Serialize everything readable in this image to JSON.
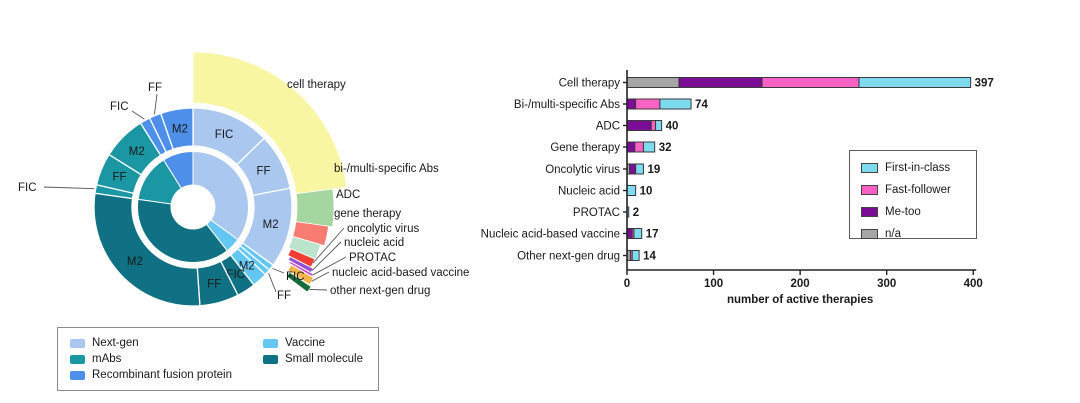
{
  "chart_data": [
    {
      "type": "pie",
      "subtype": "sunburst-donut",
      "title": "",
      "rings": [
        "modality (inner)",
        "innovation level (middle)",
        "next-gen drug class (outer)"
      ],
      "modalities": [
        {
          "name": "Next-gen",
          "color": "#A9C7EF",
          "deg": [
            0,
            126
          ],
          "levels": [
            {
              "label": "FIC",
              "deg": [
                0,
                46
              ]
            },
            {
              "label": "FF",
              "deg": [
                46,
                79
              ]
            },
            {
              "label": "M2",
              "deg": [
                79,
                126
              ]
            }
          ]
        },
        {
          "name": "Vaccine",
          "color": "#64C7F3",
          "deg": [
            126,
            142
          ],
          "levels": [
            {
              "label": "FIC",
              "deg": [
                126,
                129.5
              ],
              "callout": true
            },
            {
              "label": "FF",
              "deg": [
                129.5,
                133
              ],
              "callout": true
            },
            {
              "label": "M2",
              "deg": [
                133,
                142
              ]
            }
          ]
        },
        {
          "name": "Small molecule",
          "color": "#0F7183",
          "deg": [
            142,
            278
          ],
          "levels": [
            {
              "label": "FIC",
              "deg": [
                142,
                153
              ]
            },
            {
              "label": "FF",
              "deg": [
                153,
                176
              ]
            },
            {
              "label": "M2",
              "deg": [
                176,
                278
              ]
            }
          ]
        },
        {
          "name": "mAbs",
          "color": "#1B96A3",
          "deg": [
            278,
            328
          ],
          "levels": [
            {
              "label": "FIC",
              "deg": [
                278,
                283
              ],
              "callout": true
            },
            {
              "label": "FF",
              "deg": [
                283,
                302
              ]
            },
            {
              "label": "M2",
              "deg": [
                302,
                328
              ]
            }
          ]
        },
        {
          "name": "Recombinant fusion protein",
          "color": "#4E90E9",
          "deg": [
            328,
            360
          ],
          "levels": [
            {
              "label": "FIC",
              "deg": [
                328,
                334
              ],
              "callout": true
            },
            {
              "label": "FF",
              "deg": [
                334,
                341
              ],
              "callout": true
            },
            {
              "label": "M2",
              "deg": [
                341,
                360
              ]
            }
          ]
        }
      ],
      "outer_classes": [
        {
          "label": "cell therapy",
          "color": "#F8F5A3",
          "value": 397
        },
        {
          "label": "bi-/multi-specific Abs",
          "color": "#A5D6A0",
          "value": 74
        },
        {
          "label": "ADC",
          "color": "#F87C72",
          "value": 40
        },
        {
          "label": "gene therapy",
          "color": "#BCE4CD",
          "value": 32
        },
        {
          "label": "oncolytic virus",
          "color": "#EF3D31",
          "value": 19
        },
        {
          "label": "nucleic acid",
          "color": "#9353D2",
          "value": 10
        },
        {
          "label": "PROTAC",
          "color": "#CC45CE",
          "value": 2
        },
        {
          "label": "nucleic acid-based vaccine",
          "color": "#F4B64B",
          "value": 17
        },
        {
          "label": "other next-gen drug",
          "color": "#156B3B",
          "value": 14
        }
      ],
      "legend": [
        {
          "label": "Next-gen",
          "color": "#A9C7EF"
        },
        {
          "label": "mAbs",
          "color": "#1B96A3"
        },
        {
          "label": "Recombinant fusion protein",
          "color": "#4E90E9"
        },
        {
          "label": "Vaccine",
          "color": "#64C7F3"
        },
        {
          "label": "Small molecule",
          "color": "#0F7183"
        }
      ]
    },
    {
      "type": "bar",
      "orientation": "horizontal",
      "stacked": true,
      "categories": [
        "Cell therapy",
        "Bi-/multi-specific Abs",
        "ADC",
        "Gene therapy",
        "Oncolytic virus",
        "Nucleic acid",
        "PROTAC",
        "Nucleic acid-based vaccine",
        "Other next-gen drug"
      ],
      "series": [
        {
          "name": "First-in-class",
          "color": "#7EDAEE",
          "values": [
            129,
            36,
            7,
            13,
            9,
            10,
            2,
            9,
            8
          ]
        },
        {
          "name": "Fast-follower",
          "color": "#F961C5",
          "values": [
            112,
            28,
            5,
            10,
            0,
            0,
            0,
            2,
            2
          ]
        },
        {
          "name": "Me-too",
          "color": "#7B0C95",
          "values": [
            96,
            10,
            28,
            9,
            7,
            0,
            0,
            6,
            0
          ]
        },
        {
          "name": "n/a",
          "color": "#A6A6A6",
          "values": [
            60,
            0,
            0,
            0,
            3,
            0,
            0,
            0,
            4
          ]
        }
      ],
      "stack_order_from_axis": [
        "n/a",
        "Me-too",
        "Fast-follower",
        "First-in-class"
      ],
      "totals": [
        397,
        74,
        40,
        32,
        19,
        10,
        2,
        17,
        14
      ],
      "xlabel": "number of active therapies",
      "x_ticks": [
        0,
        100,
        200,
        300,
        400
      ],
      "xlim": [
        0,
        400
      ],
      "grid": false,
      "legend_position": "middle-right"
    }
  ]
}
